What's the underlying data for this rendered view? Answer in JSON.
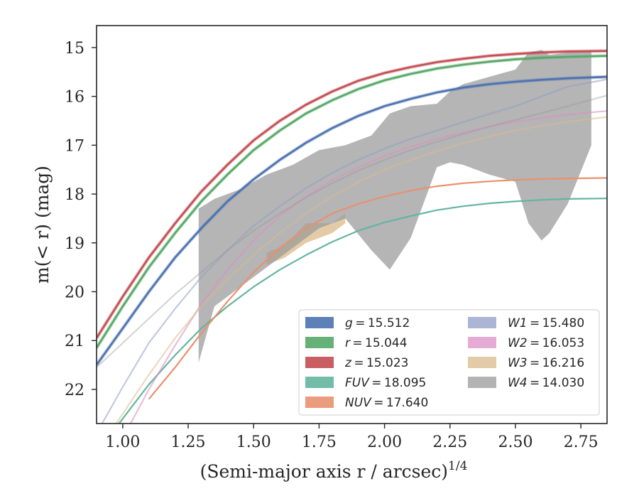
{
  "chart_data": {
    "type": "line",
    "title": "",
    "xlabel": "(Semi-major axis r / arcsec)",
    "xlabel_superscript": "1/4",
    "ylabel": "m(< r) (mag)",
    "xlim": [
      0.9,
      2.85
    ],
    "ylim": [
      22.7,
      14.55
    ],
    "y_inverted": true,
    "x_ticks": [
      "1.00",
      "1.25",
      "1.50",
      "1.75",
      "2.00",
      "2.25",
      "2.50",
      "2.75"
    ],
    "y_ticks": [
      "15",
      "16",
      "17",
      "18",
      "19",
      "20",
      "21",
      "22"
    ],
    "grid": false,
    "legend_placement": "lower-right",
    "series": [
      {
        "name": "g = 15.512",
        "band": "g",
        "color": "#4c72b0",
        "x": [
          0.9,
          1.0,
          1.1,
          1.2,
          1.3,
          1.4,
          1.5,
          1.6,
          1.7,
          1.8,
          1.9,
          2.0,
          2.1,
          2.2,
          2.3,
          2.4,
          2.5,
          2.6,
          2.7,
          2.85
        ],
        "y": [
          21.5,
          20.75,
          20.0,
          19.3,
          18.7,
          18.15,
          17.7,
          17.3,
          16.95,
          16.65,
          16.4,
          16.2,
          16.05,
          15.92,
          15.82,
          15.75,
          15.7,
          15.66,
          15.63,
          15.6
        ]
      },
      {
        "name": "r = 15.044",
        "band": "r",
        "color": "#55a868",
        "x": [
          0.9,
          1.0,
          1.1,
          1.2,
          1.3,
          1.4,
          1.5,
          1.6,
          1.7,
          1.8,
          1.9,
          2.0,
          2.1,
          2.2,
          2.3,
          2.4,
          2.5,
          2.6,
          2.7,
          2.85
        ],
        "y": [
          21.15,
          20.3,
          19.5,
          18.8,
          18.15,
          17.6,
          17.1,
          16.7,
          16.35,
          16.08,
          15.85,
          15.67,
          15.54,
          15.43,
          15.35,
          15.29,
          15.24,
          15.21,
          15.19,
          15.17
        ]
      },
      {
        "name": "z = 15.023",
        "band": "z",
        "color": "#c44e52",
        "x": [
          0.9,
          1.0,
          1.1,
          1.2,
          1.3,
          1.4,
          1.5,
          1.6,
          1.7,
          1.8,
          1.9,
          2.0,
          2.1,
          2.2,
          2.3,
          2.4,
          2.5,
          2.6,
          2.7,
          2.85
        ],
        "y": [
          20.95,
          20.1,
          19.3,
          18.6,
          17.95,
          17.4,
          16.9,
          16.5,
          16.17,
          15.9,
          15.68,
          15.52,
          15.4,
          15.3,
          15.23,
          15.17,
          15.13,
          15.1,
          15.08,
          15.07
        ]
      },
      {
        "name": "FUV = 18.095",
        "band": "FUV",
        "color": "#64b5a0",
        "x": [
          0.9,
          1.0,
          1.1,
          1.2,
          1.3,
          1.4,
          1.5,
          1.6,
          1.7,
          1.8,
          1.9,
          2.0,
          2.1,
          2.2,
          2.3,
          2.4,
          2.5,
          2.6,
          2.7,
          2.85
        ],
        "y": [
          23.3,
          22.6,
          21.9,
          21.3,
          20.75,
          20.3,
          19.9,
          19.55,
          19.25,
          18.98,
          18.75,
          18.58,
          18.45,
          18.33,
          18.25,
          18.19,
          18.15,
          18.12,
          18.1,
          18.09
        ]
      },
      {
        "name": "NUV = 17.640",
        "band": "NUV",
        "color": "#e8916e",
        "x": [
          1.1,
          1.2,
          1.3,
          1.4,
          1.5,
          1.6,
          1.7,
          1.8,
          1.9,
          2.0,
          2.1,
          2.2,
          2.3,
          2.4,
          2.5,
          2.6,
          2.7,
          2.85
        ],
        "y": [
          22.2,
          21.55,
          20.85,
          20.2,
          19.6,
          19.1,
          18.7,
          18.4,
          18.2,
          18.05,
          17.93,
          17.84,
          17.78,
          17.74,
          17.71,
          17.69,
          17.68,
          17.67
        ]
      },
      {
        "name": "W1 = 15.480",
        "band": "W1",
        "color": "#8f9cc7",
        "x": [
          0.9,
          1.0,
          1.1,
          1.2,
          1.3,
          1.4,
          1.5,
          1.6,
          1.7,
          1.8,
          1.9,
          2.0,
          2.1,
          2.2,
          2.3,
          2.4,
          2.5,
          2.6,
          2.7,
          2.85
        ],
        "y": [
          22.9,
          21.95,
          21.05,
          20.35,
          19.7,
          19.15,
          18.65,
          18.25,
          17.88,
          17.57,
          17.3,
          17.07,
          16.87,
          16.7,
          16.53,
          16.36,
          16.2,
          16.0,
          15.8,
          15.65
        ]
      },
      {
        "name": "W2 = 16.053",
        "band": "W2",
        "color": "#dd8fc5",
        "x": [
          0.9,
          1.0,
          1.1,
          1.2,
          1.3,
          1.4,
          1.5,
          1.6,
          1.7,
          1.8,
          1.9,
          2.0,
          2.1,
          2.2,
          2.3,
          2.4,
          2.5,
          2.6,
          2.7,
          2.85
        ],
        "y": [
          24.0,
          23.0,
          22.0,
          21.1,
          20.25,
          19.55,
          18.95,
          18.45,
          18.05,
          17.72,
          17.45,
          17.22,
          17.03,
          16.87,
          16.74,
          16.62,
          16.52,
          16.44,
          16.37,
          16.3
        ]
      },
      {
        "name": "W3 = 16.216",
        "band": "W3",
        "color": "#d9b98a",
        "x": [
          0.9,
          1.0,
          1.1,
          1.2,
          1.3,
          1.4,
          1.5,
          1.6,
          1.7,
          1.8,
          1.9,
          2.0,
          2.1,
          2.2,
          2.3,
          2.4,
          2.5,
          2.6,
          2.7,
          2.85
        ],
        "y": [
          23.3,
          22.5,
          21.7,
          20.95,
          20.3,
          19.75,
          19.25,
          18.8,
          18.4,
          18.05,
          17.75,
          17.5,
          17.3,
          17.12,
          16.96,
          16.82,
          16.7,
          16.6,
          16.52,
          16.42
        ]
      },
      {
        "name": "W4 = 14.030",
        "band": "W4",
        "color": "#999999",
        "x": [
          0.9,
          1.0,
          1.1,
          1.2,
          1.3,
          1.4,
          1.5,
          1.6,
          1.7,
          1.8,
          1.9,
          2.0,
          2.1,
          2.2,
          2.3,
          2.4,
          2.5,
          2.6,
          2.7,
          2.85
        ],
        "y": [
          21.55,
          21.05,
          20.55,
          20.05,
          19.6,
          19.15,
          18.75,
          18.4,
          18.07,
          17.78,
          17.52,
          17.3,
          17.1,
          16.93,
          16.77,
          16.62,
          16.48,
          16.34,
          16.2,
          15.98
        ]
      }
    ],
    "shaded_bands": [
      {
        "band": "W3",
        "color": "#d9b98a",
        "x": [
          1.55,
          1.62,
          1.7,
          1.8,
          1.85
        ],
        "y_upper": [
          19.2,
          19.05,
          18.6,
          18.6,
          18.4
        ],
        "y_lower": [
          19.45,
          19.3,
          19.0,
          18.8,
          18.6
        ]
      },
      {
        "band": "W4",
        "color": "#999999",
        "x": [
          1.29,
          1.35,
          1.45,
          1.55,
          1.65,
          1.75,
          1.85,
          1.95,
          2.02,
          2.1,
          2.2,
          2.25,
          2.3,
          2.4,
          2.5,
          2.55,
          2.6,
          2.63,
          2.7,
          2.79
        ],
        "y_upper": [
          18.3,
          18.1,
          17.9,
          17.6,
          17.4,
          17.1,
          17.0,
          16.8,
          16.35,
          16.2,
          16.15,
          15.9,
          15.75,
          15.6,
          15.45,
          15.1,
          15.05,
          15.15,
          15.1,
          15.05
        ],
        "y_lower": [
          21.45,
          20.3,
          19.9,
          19.5,
          19.1,
          18.7,
          18.5,
          19.15,
          19.55,
          18.9,
          17.45,
          17.35,
          17.4,
          17.6,
          17.75,
          18.6,
          18.95,
          18.8,
          18.2,
          17.0
        ]
      }
    ],
    "legend": {
      "columns": [
        [
          {
            "label": "g = 15.512",
            "band": "g",
            "color": "#4c72b0"
          },
          {
            "label": "r = 15.044",
            "band": "r",
            "color": "#55a868"
          },
          {
            "label": "z = 15.023",
            "band": "z",
            "color": "#c44e52"
          },
          {
            "label": "FUV = 18.095",
            "band": "FUV",
            "color": "#64b5a0"
          },
          {
            "label": "NUV = 17.640",
            "band": "NUV",
            "color": "#e8916e"
          }
        ],
        [
          {
            "label": "W1 = 15.480",
            "band": "W1",
            "color": "#8f9cc7"
          },
          {
            "label": "W2 = 16.053",
            "band": "W2",
            "color": "#dd8fc5"
          },
          {
            "label": "W3 = 16.216",
            "band": "W3",
            "color": "#d9b98a"
          },
          {
            "label": "W4 = 14.030",
            "band": "W4",
            "color": "#999999"
          }
        ]
      ]
    }
  }
}
